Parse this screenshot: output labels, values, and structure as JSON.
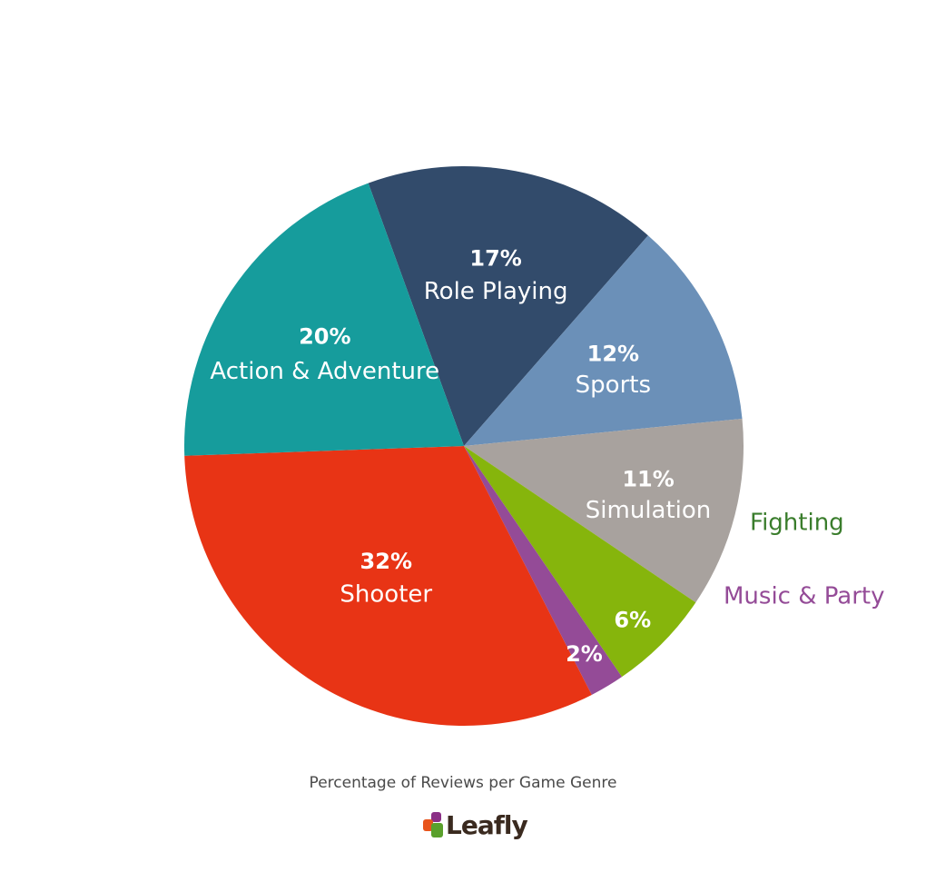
{
  "chart_data": {
    "type": "pie",
    "title": "Percentage of Reviews per Game Genre",
    "slices": [
      {
        "label": "Role Playing",
        "value": 17,
        "pct_label": "17%",
        "color": "#324b6b"
      },
      {
        "label": "Sports",
        "value": 12,
        "pct_label": "12%",
        "color": "#6b90b8"
      },
      {
        "label": "Simulation",
        "value": 11,
        "pct_label": "11%",
        "color": "#a8a29e"
      },
      {
        "label": "Fighting",
        "value": 6,
        "pct_label": "6%",
        "color": "#86b50c",
        "label_color": "#3a7d2c"
      },
      {
        "label": "Music & Party",
        "value": 2,
        "pct_label": "2%",
        "color": "#944b97",
        "label_color": "#944b97"
      },
      {
        "label": "Shooter",
        "value": 32,
        "pct_label": "32%",
        "color": "#e83415"
      },
      {
        "label": "Action & Adventure",
        "value": 20,
        "pct_label": "20%",
        "color": "#169c9c"
      }
    ]
  },
  "logo": {
    "text": "Leafly",
    "colors": [
      "#8b2f86",
      "#e8541c",
      "#5aa02c"
    ]
  }
}
